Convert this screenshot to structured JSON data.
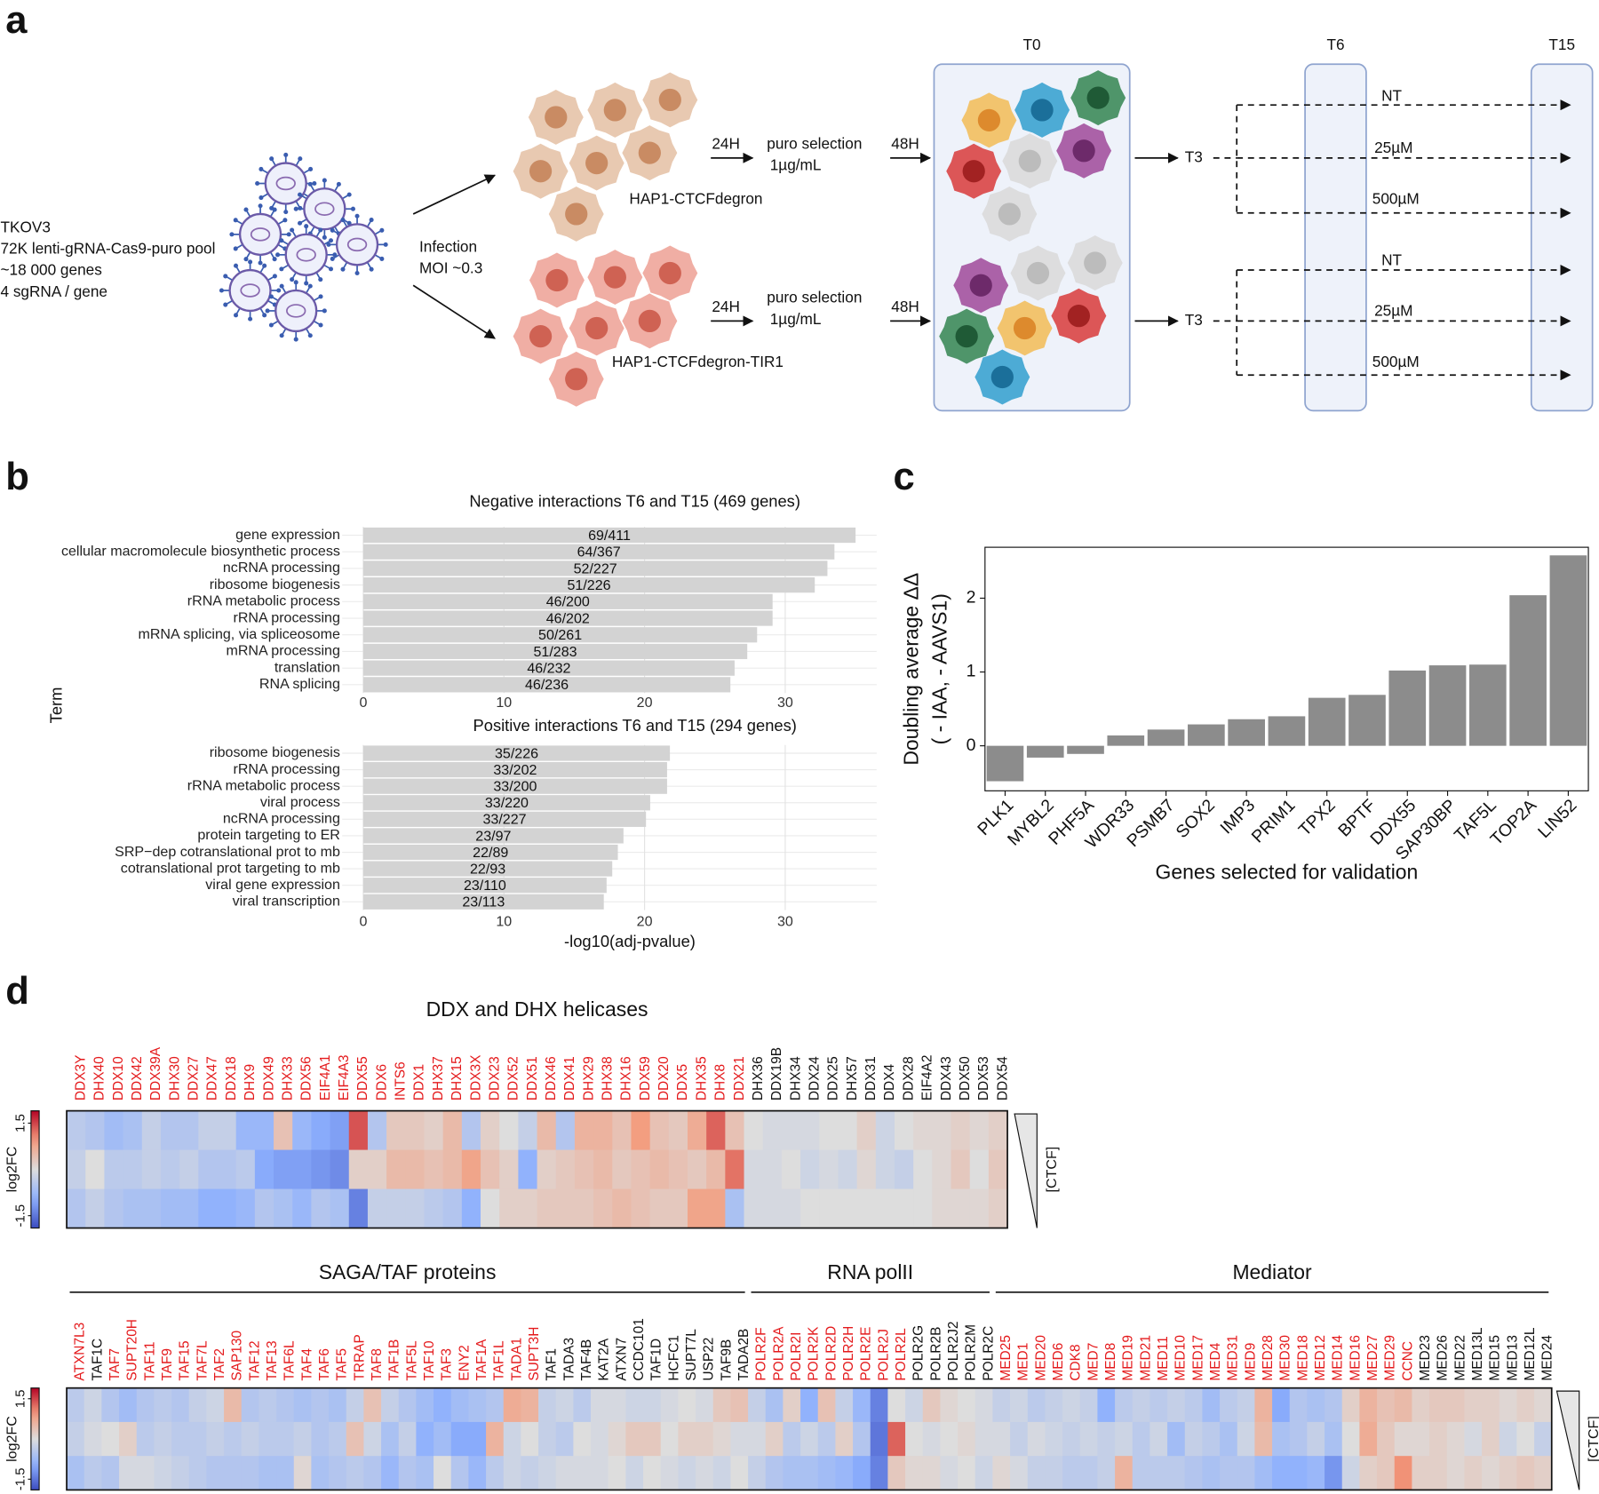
{
  "panel_labels": [
    "a",
    "b",
    "c",
    "d"
  ],
  "diagram": {
    "library": [
      "TKOV3",
      "72K lenti-gRNA-Cas9-puro pool",
      "~18 000 genes",
      "4 sgRNA / gene"
    ],
    "infection": [
      "Infection",
      "MOI ~0.3"
    ],
    "arms": [
      {
        "selection_time": "24H",
        "selection": [
          "puro selection",
          "1µg/mL"
        ],
        "cell_line": "HAP1-CTCFdegron",
        "transfer_time": "48H",
        "passage": "T3",
        "treatments": [
          "NT",
          "25µM",
          "500µM"
        ]
      },
      {
        "selection_time": "24H",
        "selection": [
          "puro selection",
          "1µg/mL"
        ],
        "cell_line": "HAP1-CTCFdegron-TIR1",
        "transfer_time": "48H",
        "passage": "T3",
        "treatments": [
          "NT",
          "25µM",
          "500µM"
        ]
      }
    ],
    "timepoints": [
      "T0",
      "T6",
      "T15"
    ]
  },
  "chart_data": [
    {
      "type": "barh",
      "title": "Negative interactions T6 and T15 (469 genes)",
      "y_label": "Term",
      "categories": [
        "gene expression",
        "cellular macromolecule biosynthetic process",
        "ncRNA processing",
        "ribosome biogenesis",
        "rRNA metabolic process",
        "rRNA processing",
        "mRNA splicing, via spliceosome",
        "mRNA processing",
        "translation",
        "RNA splicing"
      ],
      "values": [
        35.0,
        33.5,
        33.0,
        32.1,
        29.1,
        29.1,
        28.0,
        27.3,
        26.4,
        26.1
      ],
      "bar_labels": [
        "69/411",
        "64/367",
        "52/227",
        "51/226",
        "46/200",
        "46/202",
        "50/261",
        "51/283",
        "46/232",
        "46/236"
      ],
      "color": "#d3d3d3",
      "xlim": [
        -1.5,
        36.5
      ],
      "xticks": [
        0,
        10,
        20,
        30
      ],
      "grid": true
    },
    {
      "type": "barh",
      "title": "Positive interactions T6 and T15 (294 genes)",
      "x_label": "-log10(adj-pvalue)",
      "categories": [
        "ribosome biogenesis",
        "rRNA processing",
        "rRNA metabolic process",
        "viral process",
        "ncRNA processing",
        "protein targeting to ER",
        "SRP−dep cotranslational prot to mb",
        "cotranslational prot targeting to mb",
        "viral gene expression",
        "viral transcription"
      ],
      "values": [
        21.8,
        21.6,
        21.6,
        20.4,
        20.1,
        18.5,
        18.1,
        17.7,
        17.3,
        17.1
      ],
      "bar_labels": [
        "35/226",
        "33/202",
        "33/200",
        "33/220",
        "33/227",
        "23/97",
        "22/89",
        "22/93",
        "23/110",
        "23/113"
      ],
      "color": "#d3d3d3",
      "xlim": [
        -1.5,
        36.5
      ],
      "xticks": [
        0,
        10,
        20,
        30
      ],
      "grid": true
    },
    {
      "type": "bar",
      "x_label": "Genes selected for validation",
      "y_label": [
        "Doubling average ΔΔ",
        "( - IAA, - AAVS1)"
      ],
      "categories": [
        "PLK1",
        "MYBL2",
        "PHF5A",
        "WDR33",
        "PSMB7",
        "SOX2",
        "IMP3",
        "PRIM1",
        "TPX2",
        "BPTF",
        "DDX55",
        "SAP30BP",
        "TAF5L",
        "TOP2A",
        "LIN52"
      ],
      "values": [
        -0.48,
        -0.16,
        -0.11,
        0.14,
        0.22,
        0.29,
        0.36,
        0.4,
        0.65,
        0.69,
        1.02,
        1.09,
        1.1,
        2.04,
        2.58
      ],
      "color": "#8c8c8c",
      "ylim": [
        -0.61,
        2.69
      ],
      "yticks": [
        0,
        1,
        2
      ],
      "grid": false
    },
    {
      "type": "heatmap",
      "title": "DDX and DHX helicases",
      "colorbar_label": "log2FC",
      "gradient_label": "[CTCF]",
      "colormap": "coolwarm",
      "zlim": [
        -1.9,
        1.9
      ],
      "zticks": [
        1.5,
        -1.5
      ],
      "categories": [
        "DDX3Y",
        "DHX40",
        "DDX10",
        "DDX42",
        "DDX39A",
        "DHX30",
        "DDX27",
        "DDX47",
        "DDX18",
        "DHX9",
        "DDX49",
        "DHX33",
        "DDX56",
        "EIF4A1",
        "EIF4A3",
        "DDX55",
        "DDX6",
        "INTS6",
        "DDX1",
        "DHX37",
        "DHX15",
        "DDX3X",
        "DDX23",
        "DDX52",
        "DDX51",
        "DDX46",
        "DDX41",
        "DHX29",
        "DHX38",
        "DHX16",
        "DDX59",
        "DDX20",
        "DDX5",
        "DHX35",
        "DHX8",
        "DDX21",
        "DHX36",
        "DDX19B",
        "DHX34",
        "DDX24",
        "DDX25",
        "DHX57",
        "DDX31",
        "DDX4",
        "DDX28",
        "EIF4A2",
        "DDX43",
        "DDX50",
        "DDX53",
        "DDX54"
      ],
      "category_colors": [
        "#e41a1c",
        "#e41a1c",
        "#e41a1c",
        "#e41a1c",
        "#e41a1c",
        "#e41a1c",
        "#e41a1c",
        "#e41a1c",
        "#e41a1c",
        "#e41a1c",
        "#e41a1c",
        "#e41a1c",
        "#e41a1c",
        "#e41a1c",
        "#e41a1c",
        "#e41a1c",
        "#e41a1c",
        "#e41a1c",
        "#e41a1c",
        "#e41a1c",
        "#e41a1c",
        "#e41a1c",
        "#e41a1c",
        "#e41a1c",
        "#e41a1c",
        "#e41a1c",
        "#e41a1c",
        "#e41a1c",
        "#e41a1c",
        "#e41a1c",
        "#e41a1c",
        "#e41a1c",
        "#e41a1c",
        "#e41a1c",
        "#e41a1c",
        "#e41a1c",
        "#111111",
        "#111111",
        "#111111",
        "#111111",
        "#111111",
        "#111111",
        "#111111",
        "#111111",
        "#111111",
        "#111111",
        "#111111",
        "#111111",
        "#111111",
        "#111111"
      ],
      "values": [
        [
          -0.4,
          -0.5,
          -0.7,
          -0.6,
          -0.3,
          -0.5,
          -0.5,
          -0.3,
          -0.3,
          -0.8,
          -0.8,
          0.4,
          -0.8,
          -1.0,
          -1.1,
          1.4,
          -0.5,
          0.3,
          0.3,
          0.2,
          0.5,
          -0.5,
          0.2,
          0.0,
          -0.3,
          0.5,
          -0.5,
          0.6,
          0.6,
          0.4,
          0.9,
          0.4,
          0.3,
          0.7,
          1.3,
          0.4,
          0.0,
          -0.1,
          -0.1,
          -0.1,
          0.0,
          0.0,
          0.2,
          -0.2,
          0.0,
          0.1,
          0.1,
          0.2,
          0.1,
          0.2
        ],
        [
          -0.3,
          0.0,
          -0.4,
          -0.4,
          -0.3,
          -0.4,
          -0.3,
          -0.5,
          -0.5,
          -0.4,
          -1.0,
          -1.1,
          -1.1,
          -1.2,
          -1.3,
          0.2,
          0.2,
          0.5,
          0.5,
          0.4,
          0.5,
          0.8,
          0.4,
          0.2,
          -0.9,
          0.2,
          0.3,
          0.4,
          0.5,
          0.3,
          0.4,
          0.5,
          0.4,
          0.3,
          0.5,
          1.2,
          -0.1,
          -0.1,
          0.0,
          -0.2,
          -0.1,
          -0.2,
          0.1,
          -0.2,
          -0.3,
          0.0,
          0.1,
          0.3,
          0.0,
          0.3
        ],
        [
          -0.5,
          -0.3,
          -0.5,
          -0.6,
          -0.6,
          -0.7,
          -0.7,
          -0.9,
          -0.9,
          -0.8,
          -0.5,
          -0.6,
          -0.8,
          -0.5,
          -0.6,
          -1.4,
          -0.3,
          -0.3,
          -0.3,
          -0.4,
          -0.5,
          -0.9,
          0.0,
          0.2,
          0.2,
          0.3,
          0.3,
          0.3,
          0.4,
          0.5,
          0.4,
          0.3,
          0.3,
          0.8,
          0.8,
          -0.6,
          -0.1,
          -0.1,
          -0.1,
          0.0,
          0.0,
          0.0,
          0.0,
          0.0,
          0.0,
          0.0,
          0.1,
          0.1,
          0.1,
          0.2
        ]
      ]
    },
    {
      "type": "heatmap",
      "colorbar_label": "log2FC",
      "gradient_label": "[CTCF]",
      "colormap": "coolwarm",
      "zlim": [
        -1.9,
        1.9
      ],
      "zticks": [
        1.5,
        -1.5
      ],
      "groups": [
        {
          "name": "SAGA/TAF proteins",
          "categories": [
            "ATXN7L3",
            "TAF1C",
            "TAF7",
            "SUPT20H",
            "TAF11",
            "TAF9",
            "TAF15",
            "TAF7L",
            "TAF2",
            "SAP130",
            "TAF12",
            "TAF13",
            "TAF6L",
            "TAF4",
            "TAF6",
            "TAF5",
            "TRRAP",
            "TAF8",
            "TAF1B",
            "TAF5L",
            "TAF10",
            "TAF3",
            "ENY2",
            "TAF1A",
            "TAF1L",
            "TADA1",
            "SUPT3H",
            "TAF1",
            "TADA3",
            "TAF4B",
            "KAT2A",
            "ATXN7",
            "CCDC101",
            "TAF1D",
            "HCFC1",
            "SUPT7L",
            "USP22",
            "TAF9B",
            "TADA2B"
          ],
          "category_colors": [
            "#e41a1c",
            "#111111",
            "#e41a1c",
            "#e41a1c",
            "#e41a1c",
            "#e41a1c",
            "#e41a1c",
            "#e41a1c",
            "#e41a1c",
            "#e41a1c",
            "#e41a1c",
            "#e41a1c",
            "#e41a1c",
            "#e41a1c",
            "#e41a1c",
            "#e41a1c",
            "#e41a1c",
            "#e41a1c",
            "#e41a1c",
            "#e41a1c",
            "#e41a1c",
            "#e41a1c",
            "#e41a1c",
            "#e41a1c",
            "#e41a1c",
            "#e41a1c",
            "#e41a1c",
            "#111111",
            "#111111",
            "#111111",
            "#111111",
            "#111111",
            "#111111",
            "#111111",
            "#111111",
            "#111111",
            "#111111",
            "#111111",
            "#111111"
          ],
          "values": [
            [
              -0.4,
              -0.2,
              -0.5,
              -0.7,
              -0.5,
              -0.4,
              -0.5,
              -0.3,
              -0.2,
              0.5,
              -0.5,
              -0.4,
              -0.5,
              -0.6,
              -0.5,
              -0.6,
              -0.3,
              0.4,
              -0.3,
              -0.5,
              -0.7,
              -0.9,
              -0.7,
              -0.6,
              -0.5,
              0.7,
              0.6,
              -0.3,
              -0.2,
              -0.4,
              -0.1,
              -0.1,
              -0.2,
              -0.2,
              -0.1,
              0.0,
              -0.1,
              0.3,
              0.4
            ],
            [
              -0.3,
              -0.1,
              0.0,
              0.2,
              -0.4,
              -0.3,
              -0.4,
              -0.4,
              -0.3,
              -0.4,
              -0.3,
              -0.4,
              -0.4,
              -0.3,
              -0.5,
              -0.4,
              0.4,
              -0.2,
              -0.6,
              -0.3,
              -0.9,
              -0.7,
              -1.0,
              -1.0,
              0.6,
              -0.2,
              0.0,
              -0.3,
              -0.4,
              0.0,
              -0.1,
              0.1,
              0.3,
              0.3,
              0.0,
              0.2,
              0.2,
              0.1,
              -0.1
            ],
            [
              -0.6,
              -0.4,
              -0.5,
              -0.1,
              -0.1,
              -0.2,
              -0.3,
              -0.4,
              -0.5,
              -0.5,
              -0.5,
              -0.6,
              -0.6,
              0.1,
              -0.6,
              -0.5,
              -0.4,
              -0.5,
              -0.8,
              -0.5,
              -0.6,
              0.0,
              -0.5,
              -0.8,
              -0.4,
              -0.2,
              -0.3,
              -0.2,
              -0.1,
              -0.1,
              -0.1,
              0.0,
              -0.2,
              0.0,
              -0.1,
              -0.2,
              -0.1,
              -0.2,
              0.0
            ]
          ]
        },
        {
          "name": "RNA polII",
          "categories": [
            "POLR2F",
            "POLR2A",
            "POLR2I",
            "POLR2K",
            "POLR2D",
            "POLR2H",
            "POLR2E",
            "POLR2J",
            "POLR2L",
            "POLR2G",
            "POLR2B",
            "POLR2J2",
            "POLR2M",
            "POLR2C"
          ],
          "category_colors": [
            "#e41a1c",
            "#e41a1c",
            "#e41a1c",
            "#e41a1c",
            "#e41a1c",
            "#e41a1c",
            "#e41a1c",
            "#e41a1c",
            "#e41a1c",
            "#111111",
            "#111111",
            "#111111",
            "#111111",
            "#111111"
          ],
          "values": [
            [
              -0.3,
              -0.6,
              0.2,
              -0.9,
              0.4,
              -0.3,
              -0.8,
              -1.4,
              0.0,
              -0.2,
              0.3,
              0.1,
              0.0,
              -0.1
            ],
            [
              -0.1,
              0.2,
              -0.4,
              -0.2,
              -0.4,
              0.2,
              -0.5,
              -1.5,
              1.3,
              0.0,
              -0.1,
              0.0,
              0.1,
              -0.1
            ],
            [
              -0.3,
              -0.5,
              -0.6,
              -0.6,
              -0.7,
              -0.8,
              -1.0,
              -1.4,
              0.3,
              0.1,
              0.1,
              -0.1,
              0.0,
              -0.2
            ]
          ]
        },
        {
          "name": "Mediator",
          "categories": [
            "MED25",
            "MED1",
            "MED20",
            "MED6",
            "CDK8",
            "MED7",
            "MED8",
            "MED19",
            "MED21",
            "MED11",
            "MED10",
            "MED17",
            "MED4",
            "MED31",
            "MED9",
            "MED28",
            "MED30",
            "MED18",
            "MED12",
            "MED14",
            "MED16",
            "MED27",
            "MED29",
            "CCNC",
            "MED23",
            "MED26",
            "MED22",
            "MED13L",
            "MED15",
            "MED13",
            "MED12L",
            "MED24"
          ],
          "category_colors": [
            "#e41a1c",
            "#e41a1c",
            "#e41a1c",
            "#e41a1c",
            "#e41a1c",
            "#e41a1c",
            "#e41a1c",
            "#e41a1c",
            "#e41a1c",
            "#e41a1c",
            "#e41a1c",
            "#e41a1c",
            "#e41a1c",
            "#e41a1c",
            "#e41a1c",
            "#e41a1c",
            "#e41a1c",
            "#e41a1c",
            "#e41a1c",
            "#e41a1c",
            "#e41a1c",
            "#e41a1c",
            "#e41a1c",
            "#e41a1c",
            "#111111",
            "#111111",
            "#111111",
            "#111111",
            "#111111",
            "#111111",
            "#111111",
            "#111111"
          ],
          "values": [
            [
              -0.3,
              -0.2,
              -0.4,
              -0.3,
              -0.2,
              -0.3,
              -0.9,
              -0.4,
              -0.3,
              -0.4,
              -0.3,
              -0.4,
              -0.7,
              -0.4,
              -0.3,
              0.6,
              -1.0,
              -0.5,
              -0.6,
              -0.5,
              0.2,
              0.6,
              0.4,
              0.5,
              0.2,
              0.3,
              0.3,
              0.2,
              0.2,
              0.1,
              0.2,
              0.1
            ],
            [
              -0.1,
              -0.3,
              -0.1,
              -0.2,
              -0.3,
              -0.2,
              -0.3,
              -0.2,
              -0.4,
              -0.2,
              -0.7,
              -0.3,
              -0.4,
              -0.6,
              -0.2,
              0.5,
              -0.6,
              -0.5,
              -0.3,
              -0.6,
              0.0,
              0.7,
              0.3,
              0.1,
              0.1,
              0.2,
              0.1,
              -0.1,
              0.2,
              -0.2,
              0.0,
              -0.3
            ],
            [
              0.1,
              -0.1,
              -0.3,
              -0.3,
              -0.4,
              -0.4,
              -0.3,
              0.6,
              -0.4,
              -0.4,
              -0.4,
              -0.5,
              -0.6,
              -0.5,
              -0.5,
              -0.7,
              -0.9,
              -0.9,
              -0.8,
              -1.2,
              -0.2,
              0.2,
              0.3,
              1.0,
              0.2,
              0.2,
              0.1,
              0.2,
              0.1,
              0.2,
              0.3,
              0.2
            ]
          ]
        }
      ]
    }
  ]
}
